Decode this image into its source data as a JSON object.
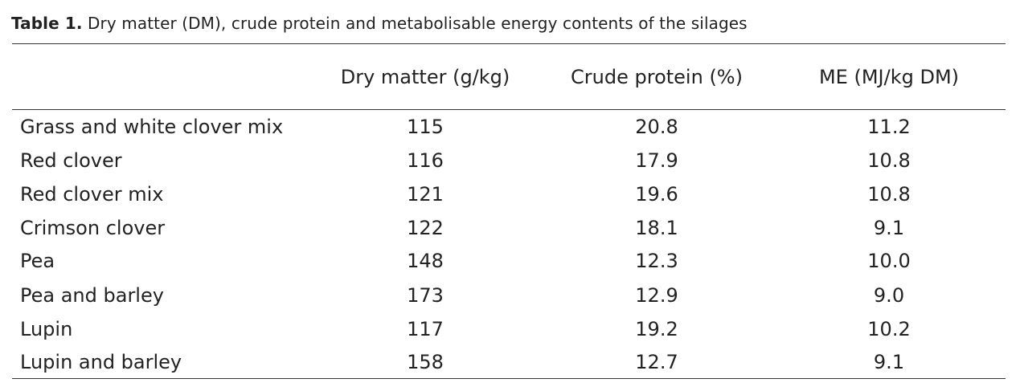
{
  "table": {
    "caption_label": "Table 1.",
    "caption_text": "Dry matter (DM), crude protein and metabolisable energy contents of the silages",
    "columns": [
      "",
      "Dry matter (g/kg)",
      "Crude protein (%)",
      "ME (MJ/kg DM)"
    ],
    "rows": [
      {
        "name": "Grass and white clover mix",
        "dm": "115",
        "cp": "20.8",
        "me": "11.2"
      },
      {
        "name": "Red clover",
        "dm": "116",
        "cp": "17.9",
        "me": "10.8"
      },
      {
        "name": "Red clover mix",
        "dm": "121",
        "cp": "19.6",
        "me": "10.8"
      },
      {
        "name": "Crimson clover",
        "dm": "122",
        "cp": "18.1",
        "me": "9.1"
      },
      {
        "name": "Pea",
        "dm": "148",
        "cp": "12.3",
        "me": "10.0"
      },
      {
        "name": "Pea and barley",
        "dm": "173",
        "cp": "12.9",
        "me": "9.0"
      },
      {
        "name": "Lupin",
        "dm": "117",
        "cp": "19.2",
        "me": "10.2"
      },
      {
        "name": "Lupin and barley",
        "dm": "158",
        "cp": "12.7",
        "me": "9.1"
      }
    ]
  }
}
